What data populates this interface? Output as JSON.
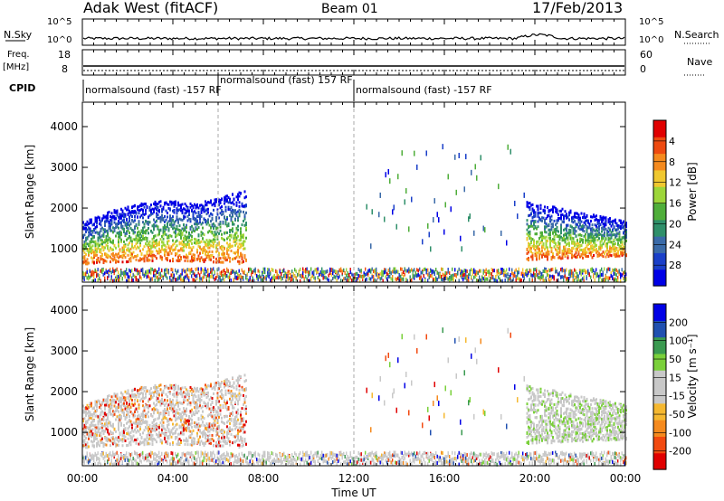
{
  "header": {
    "station": "Adak West (fitACF)",
    "beam": "Beam 01",
    "date": "17/Feb/2013"
  },
  "top_panels": {
    "nsky_label": "N.Sky",
    "nsearch_label": "N.Search",
    "noise_ticks": [
      "10^5",
      "10^0"
    ],
    "freq_label": "Freq.",
    "freq_unit": "[MHz]",
    "freq_ticks": [
      "18",
      "8"
    ],
    "nave_label": "Nave",
    "nave_ticks": [
      "60",
      "0"
    ],
    "cpid_label": "CPID",
    "cpid_segments": [
      {
        "text": "normalsound (fast) -157 RF",
        "start_hour": 0.0
      },
      {
        "text": "normalsound (fast) 157 RF",
        "start_hour": 6.0
      },
      {
        "text": "normalsound (fast) -157 RF",
        "start_hour": 12.0
      }
    ]
  },
  "chart_data": [
    {
      "type": "heatmap",
      "name": "power",
      "xlabel": "Time UT",
      "ylabel": "Slant Range [km]",
      "xlim": [
        0,
        24
      ],
      "ylim": [
        180,
        4600
      ],
      "x_ticks": [
        "00:00",
        "04:00",
        "08:00",
        "12:00",
        "16:00",
        "20:00",
        "00:00"
      ],
      "y_ticks": [
        "1000",
        "2000",
        "3000",
        "4000"
      ],
      "colorbar": {
        "label": "Power [dB]",
        "range": [
          0,
          32
        ],
        "ticks": [
          "4",
          "8",
          "12",
          "16",
          "20",
          "24",
          "28"
        ]
      },
      "colors": [
        "#0000e6",
        "#1a3fc8",
        "#3a6aa8",
        "#2f8f6a",
        "#4fae3a",
        "#9dd63a",
        "#f0c830",
        "#f58a1e",
        "#ee4a10",
        "#e00000"
      ],
      "scatter_regions": [
        {
          "t0": 0.0,
          "t1": 7.2,
          "level": "strong"
        },
        {
          "t0": 19.6,
          "t1": 24.0,
          "level": "strong"
        },
        {
          "t0": 12.5,
          "t1": 19.5,
          "level": "sparse"
        }
      ]
    },
    {
      "type": "heatmap",
      "name": "velocity",
      "xlabel": "Time UT",
      "ylabel": "Slant Range [km]",
      "xlim": [
        0,
        24
      ],
      "ylim": [
        180,
        4600
      ],
      "x_ticks": [
        "00:00",
        "04:00",
        "08:00",
        "12:00",
        "16:00",
        "20:00",
        "00:00"
      ],
      "y_ticks": [
        "1000",
        "2000",
        "3000",
        "4000"
      ],
      "colorbar": {
        "label": "Velocity [m s⁻¹]",
        "range": [
          -240,
          240
        ],
        "ticks": [
          "200",
          "100",
          "50",
          "15",
          "-15",
          "-50",
          "-100",
          "-200"
        ]
      },
      "colors": [
        "#e00000",
        "#f24a10",
        "#f58a1e",
        "#f5b830",
        "#c8c8c8",
        "#c8c8c8",
        "#7ad03a",
        "#3a9a50",
        "#2050b0",
        "#0000e6"
      ],
      "ground_scatter_color": "#bfbfbf"
    }
  ]
}
